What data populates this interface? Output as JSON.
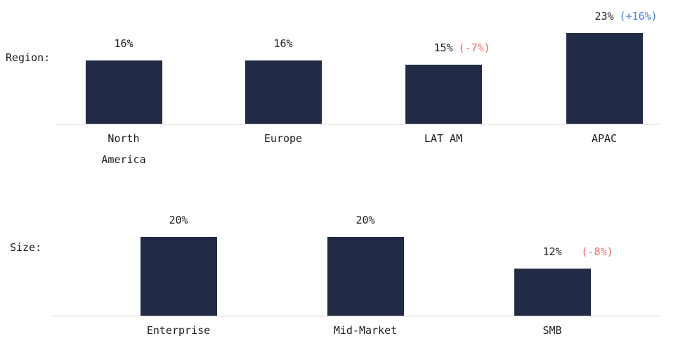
{
  "chart_data": [
    {
      "type": "bar",
      "title": "Region:",
      "categories": [
        "North America",
        "Europe",
        "LAT AM",
        "APAC"
      ],
      "values": [
        16,
        16,
        15,
        23
      ],
      "value_labels": [
        "16%",
        "16%",
        "15%",
        "23%"
      ],
      "color": "#222b45",
      "annotations": [
        {
          "x": "LAT AM",
          "text": "(-7%)",
          "color": "#f06a6a"
        },
        {
          "x": "APAC",
          "text": "(+16%)",
          "color": "#4a7fe0"
        }
      ]
    },
    {
      "type": "bar",
      "title": "Size:",
      "categories": [
        "Enterprise",
        "Mid-Market",
        "SMB"
      ],
      "values": [
        20,
        20,
        12
      ],
      "value_labels": [
        "20%",
        "20%",
        "12%"
      ],
      "color": "#222b45",
      "annotations": [
        {
          "x": "SMB",
          "text": "(-8%)",
          "color": "#f06a6a"
        }
      ]
    }
  ]
}
